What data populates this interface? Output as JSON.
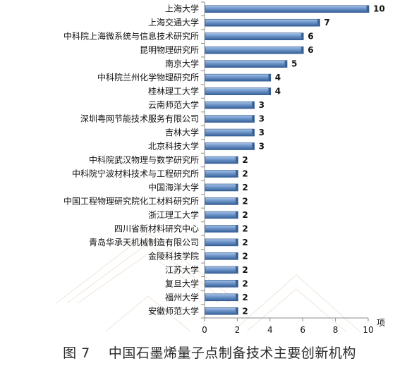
{
  "caption": "图 7    中国石墨烯量子点制备技术主要创新机构",
  "chart_data": {
    "type": "bar",
    "orientation": "horizontal",
    "categories": [
      "上海大学",
      "上海交通大学",
      "中科院上海微系统与信息技术研究所",
      "昆明物理研究所",
      "南京大学",
      "中科院兰州化学物理研究所",
      "桂林理工大学",
      "云南师范大学",
      "深圳粤网节能技术服务有限公司",
      "吉林大学",
      "北京科技大学",
      "中科院武汉物理与数学研究所",
      "中科院宁波材料技术与工程研究所",
      "中国海洋大学",
      "中国工程物理研究院化工材料研究所",
      "浙江理工大学",
      "四川省新材料研究中心",
      "青岛华承天机械制造有限公司",
      "金陵科技学院",
      "江苏大学",
      "复旦大学",
      "福州大学",
      "安徽师范大学"
    ],
    "values": [
      10,
      7,
      6,
      6,
      5,
      4,
      4,
      3,
      3,
      3,
      3,
      2,
      2,
      2,
      2,
      2,
      2,
      2,
      2,
      2,
      2,
      2,
      2
    ],
    "value_labels": [
      "10",
      "7",
      "6",
      "6",
      "5",
      "4",
      "4",
      "3",
      "3",
      "3",
      "3",
      "2",
      "2",
      "2",
      "2",
      "2",
      "2",
      "2",
      "2",
      "2",
      "2",
      "2",
      "2"
    ],
    "xlim": [
      0,
      10
    ],
    "x_ticks": [
      0,
      2,
      4,
      6,
      8,
      10
    ],
    "x_tick_labels": [
      "0",
      "2",
      "4",
      "6",
      "8",
      "10"
    ],
    "xlabel": "项",
    "ylabel": "",
    "grid": false,
    "colors": {
      "bar_light": "#8fb2dc",
      "bar_mid": "#5b87c0",
      "bar_dark": "#2f5a90",
      "axis": "#8c8c8c",
      "text": "#111111",
      "watermark": "#e7dccd"
    }
  }
}
